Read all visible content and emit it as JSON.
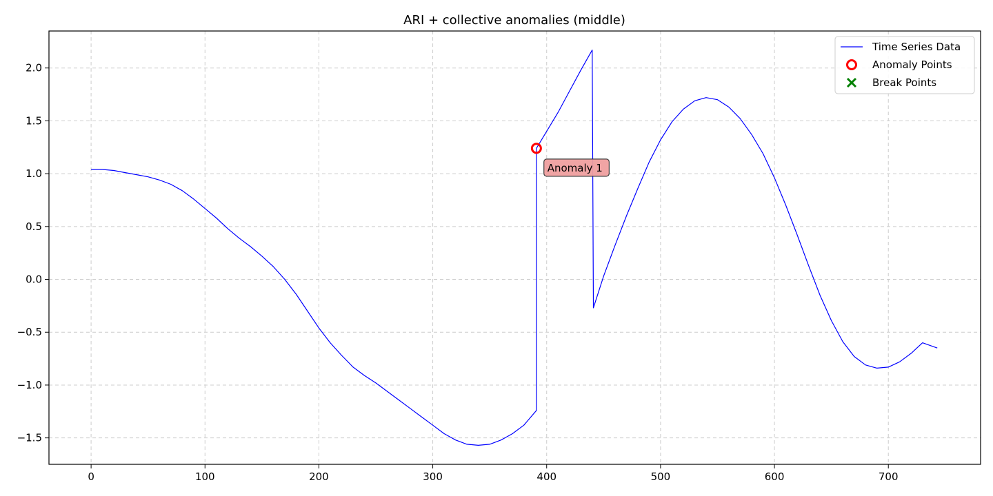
{
  "chart_data": {
    "type": "line",
    "title": "ARI + collective anomalies (middle)",
    "xlabel": "",
    "ylabel": "",
    "xlim": [
      -37,
      781
    ],
    "ylim": [
      -1.75,
      2.35
    ],
    "x_ticks": [
      0,
      100,
      200,
      300,
      400,
      500,
      600,
      700
    ],
    "y_ticks": [
      -1.5,
      -1.0,
      -0.5,
      0.0,
      0.5,
      1.0,
      1.5,
      2.0
    ],
    "x_tick_labels": [
      "0",
      "100",
      "200",
      "300",
      "400",
      "500",
      "600",
      "700"
    ],
    "y_tick_labels": [
      "−1.5",
      "−1.0",
      "−0.5",
      "0.0",
      "0.5",
      "1.0",
      "1.5",
      "2.0"
    ],
    "grid": true,
    "legend_position": "top-right",
    "series": [
      {
        "name": "Time Series Data",
        "color": "#0000ff",
        "x": [
          0,
          10,
          20,
          30,
          40,
          50,
          60,
          70,
          80,
          90,
          100,
          110,
          120,
          130,
          140,
          150,
          160,
          170,
          180,
          190,
          200,
          210,
          220,
          230,
          240,
          250,
          260,
          270,
          280,
          290,
          300,
          310,
          320,
          330,
          340,
          350,
          360,
          370,
          380,
          391,
          391,
          400,
          410,
          420,
          430,
          440,
          441,
          450,
          460,
          470,
          480,
          490,
          500,
          510,
          520,
          530,
          540,
          550,
          560,
          570,
          580,
          590,
          600,
          610,
          620,
          630,
          640,
          650,
          660,
          670,
          680,
          690,
          700,
          710,
          720,
          730,
          743
        ],
        "y": [
          1.04,
          1.04,
          1.03,
          1.01,
          0.99,
          0.97,
          0.94,
          0.9,
          0.84,
          0.76,
          0.67,
          0.58,
          0.48,
          0.39,
          0.31,
          0.22,
          0.12,
          0.0,
          -0.14,
          -0.3,
          -0.46,
          -0.6,
          -0.72,
          -0.83,
          -0.91,
          -0.98,
          -1.06,
          -1.14,
          -1.22,
          -1.3,
          -1.38,
          -1.46,
          -1.52,
          -1.56,
          -1.57,
          -1.56,
          -1.52,
          -1.46,
          -1.38,
          -1.24,
          1.24,
          1.4,
          1.58,
          1.78,
          1.98,
          2.17,
          -0.27,
          0.03,
          0.32,
          0.6,
          0.86,
          1.11,
          1.32,
          1.49,
          1.61,
          1.69,
          1.72,
          1.7,
          1.63,
          1.52,
          1.37,
          1.19,
          0.96,
          0.7,
          0.42,
          0.13,
          -0.15,
          -0.39,
          -0.59,
          -0.73,
          -0.81,
          -0.84,
          -0.83,
          -0.78,
          -0.7,
          -0.6,
          -0.65
        ]
      }
    ],
    "anomaly_points": {
      "name": "Anomaly Points",
      "color": "#ff0000",
      "points": [
        {
          "x": 391,
          "y": 1.24
        }
      ]
    },
    "break_points": {
      "name": "Break Points",
      "color": "#008000",
      "points": []
    },
    "annotations": [
      {
        "text": "Anomaly 1",
        "x": 400,
        "y": 1.06,
        "bg": "#f0a0a0"
      }
    ]
  }
}
